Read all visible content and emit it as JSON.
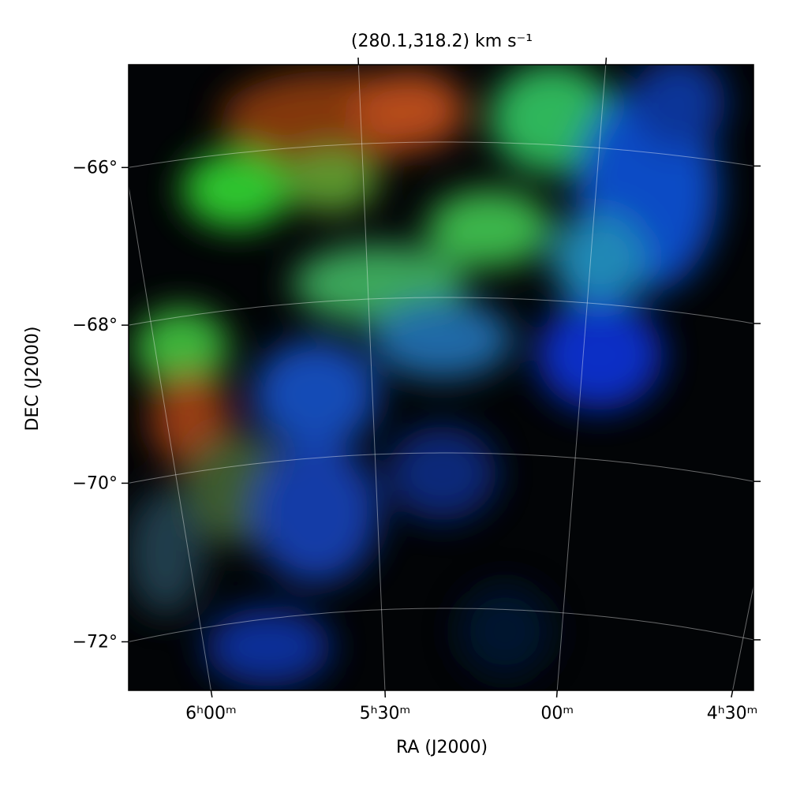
{
  "chart_data": {
    "type": "image",
    "title": "(280.1,318.2) km s⁻¹",
    "xlabel": "RA (J2000)",
    "ylabel": "DEC (J2000)",
    "xticks": [
      {
        "value": 6,
        "label": "6ʰ00ᵐ"
      },
      {
        "value": 5.5,
        "label": "5ʰ30ᵐ"
      },
      {
        "value": 5,
        "label": "00ᵐ"
      },
      {
        "value": 4.5,
        "label": "4ʰ30ᵐ"
      }
    ],
    "yticks": [
      {
        "value": -66,
        "label": "−66°"
      },
      {
        "value": -68,
        "label": "−68°"
      },
      {
        "value": -70,
        "label": "−70°"
      },
      {
        "value": -72,
        "label": "−72°"
      }
    ],
    "grid": true
  }
}
